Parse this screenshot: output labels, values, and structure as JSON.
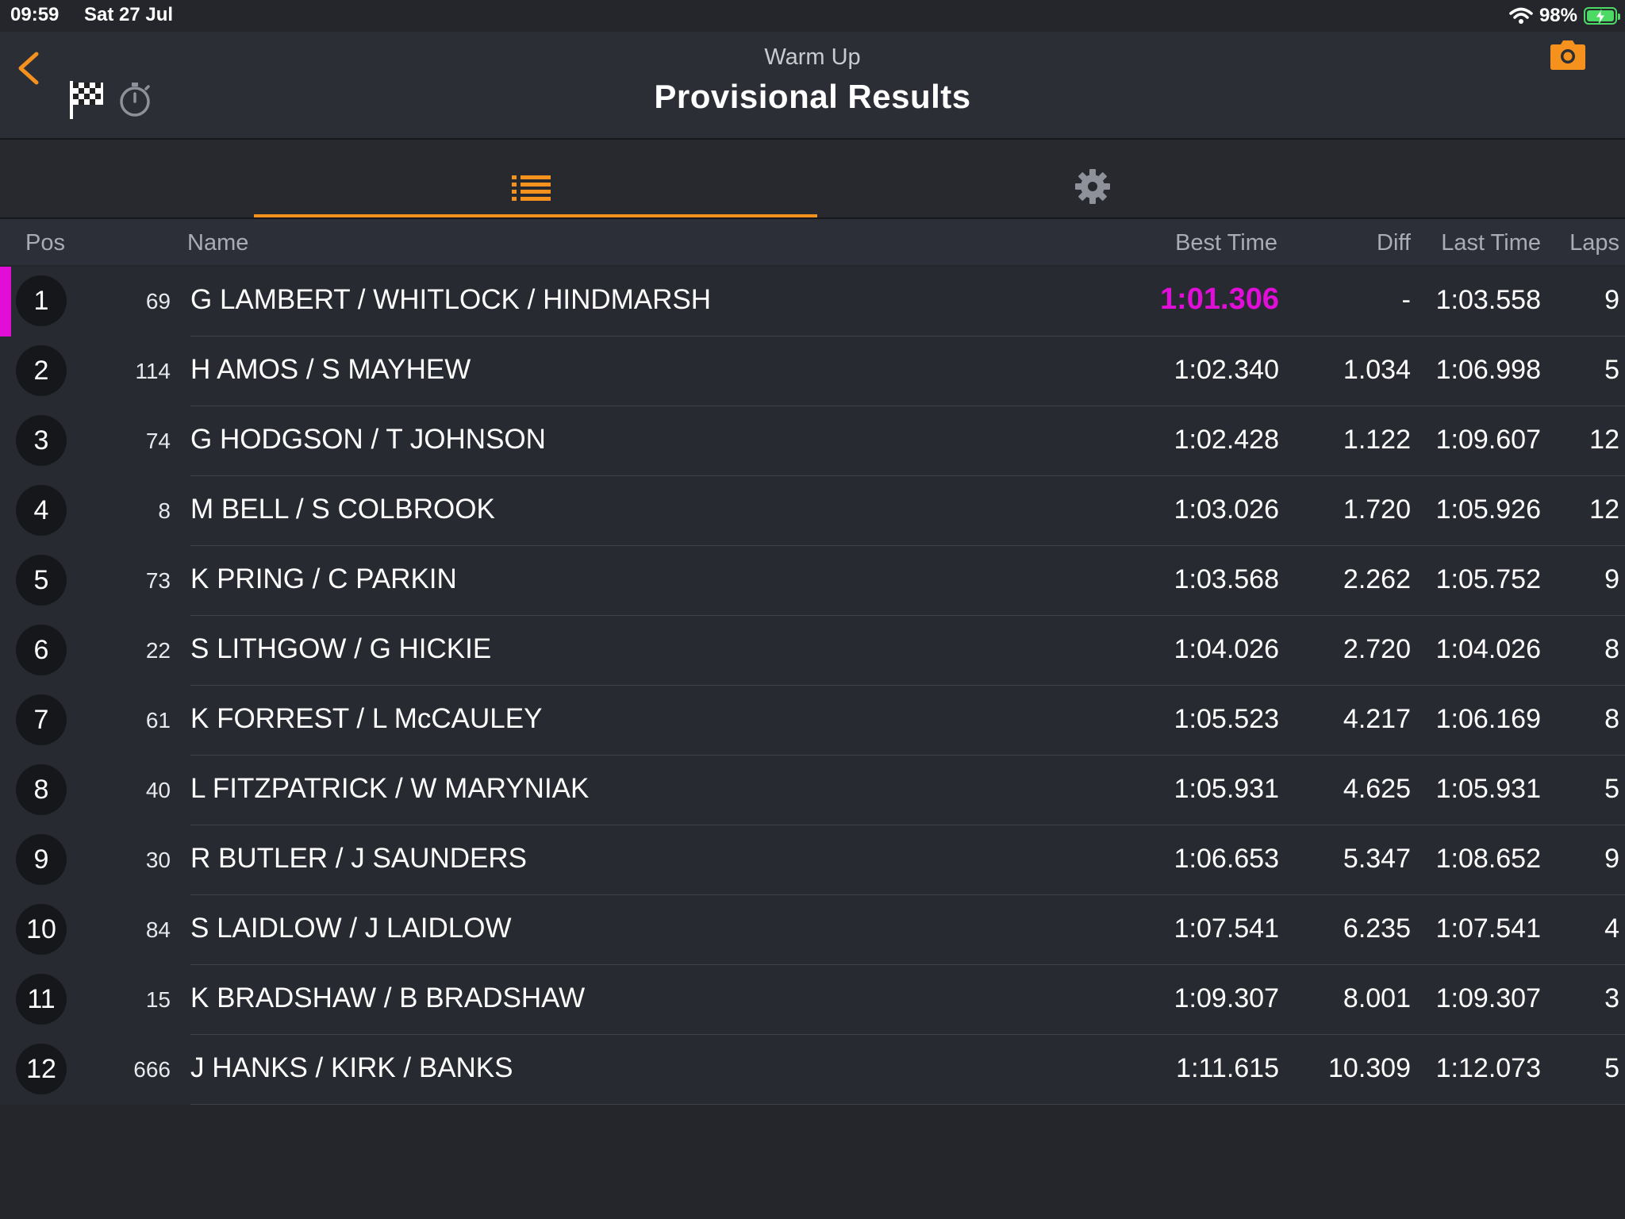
{
  "status_bar": {
    "time": "09:59",
    "date": "Sat 27 Jul",
    "battery": "98%",
    "icons": [
      "wifi-icon",
      "battery-charging-icon"
    ]
  },
  "header": {
    "subtitle": "Warm Up",
    "title": "Provisional Results",
    "icons": [
      "back-chevron-icon",
      "checkered-flag-icon",
      "stopwatch-icon",
      "camera-icon"
    ]
  },
  "tabs": [
    {
      "icon": "list-icon",
      "active": true
    },
    {
      "icon": "gear-icon",
      "active": false
    }
  ],
  "colors": {
    "accent": "#f5921e",
    "fastest": "#e10ed8",
    "background": "#24262b"
  },
  "columns": {
    "pos": "Pos",
    "name": "Name",
    "best": "Best Time",
    "diff": "Diff",
    "last": "Last Time",
    "laps": "Laps"
  },
  "rows": [
    {
      "pos": "1",
      "no": "69",
      "name": "G LAMBERT / WHITLOCK / HINDMARSH",
      "best": "1:01.306",
      "diff": "-",
      "last": "1:03.558",
      "laps": "9"
    },
    {
      "pos": "2",
      "no": "114",
      "name": "H AMOS / S MAYHEW",
      "best": "1:02.340",
      "diff": "1.034",
      "last": "1:06.998",
      "laps": "5"
    },
    {
      "pos": "3",
      "no": "74",
      "name": "G HODGSON / T JOHNSON",
      "best": "1:02.428",
      "diff": "1.122",
      "last": "1:09.607",
      "laps": "12"
    },
    {
      "pos": "4",
      "no": "8",
      "name": "M BELL / S COLBROOK",
      "best": "1:03.026",
      "diff": "1.720",
      "last": "1:05.926",
      "laps": "12"
    },
    {
      "pos": "5",
      "no": "73",
      "name": "K PRING / C PARKIN",
      "best": "1:03.568",
      "diff": "2.262",
      "last": "1:05.752",
      "laps": "9"
    },
    {
      "pos": "6",
      "no": "22",
      "name": "S LITHGOW / G HICKIE",
      "best": "1:04.026",
      "diff": "2.720",
      "last": "1:04.026",
      "laps": "8"
    },
    {
      "pos": "7",
      "no": "61",
      "name": "K FORREST / L McCAULEY",
      "best": "1:05.523",
      "diff": "4.217",
      "last": "1:06.169",
      "laps": "8"
    },
    {
      "pos": "8",
      "no": "40",
      "name": "L FITZPATRICK / W MARYNIAK",
      "best": "1:05.931",
      "diff": "4.625",
      "last": "1:05.931",
      "laps": "5"
    },
    {
      "pos": "9",
      "no": "30",
      "name": "R BUTLER / J SAUNDERS",
      "best": "1:06.653",
      "diff": "5.347",
      "last": "1:08.652",
      "laps": "9"
    },
    {
      "pos": "10",
      "no": "84",
      "name": "S LAIDLOW / J LAIDLOW",
      "best": "1:07.541",
      "diff": "6.235",
      "last": "1:07.541",
      "laps": "4"
    },
    {
      "pos": "11",
      "no": "15",
      "name": "K BRADSHAW / B BRADSHAW",
      "best": "1:09.307",
      "diff": "8.001",
      "last": "1:09.307",
      "laps": "3"
    },
    {
      "pos": "12",
      "no": "666",
      "name": "J HANKS / KIRK / BANKS",
      "best": "1:11.615",
      "diff": "10.309",
      "last": "1:12.073",
      "laps": "5"
    }
  ]
}
